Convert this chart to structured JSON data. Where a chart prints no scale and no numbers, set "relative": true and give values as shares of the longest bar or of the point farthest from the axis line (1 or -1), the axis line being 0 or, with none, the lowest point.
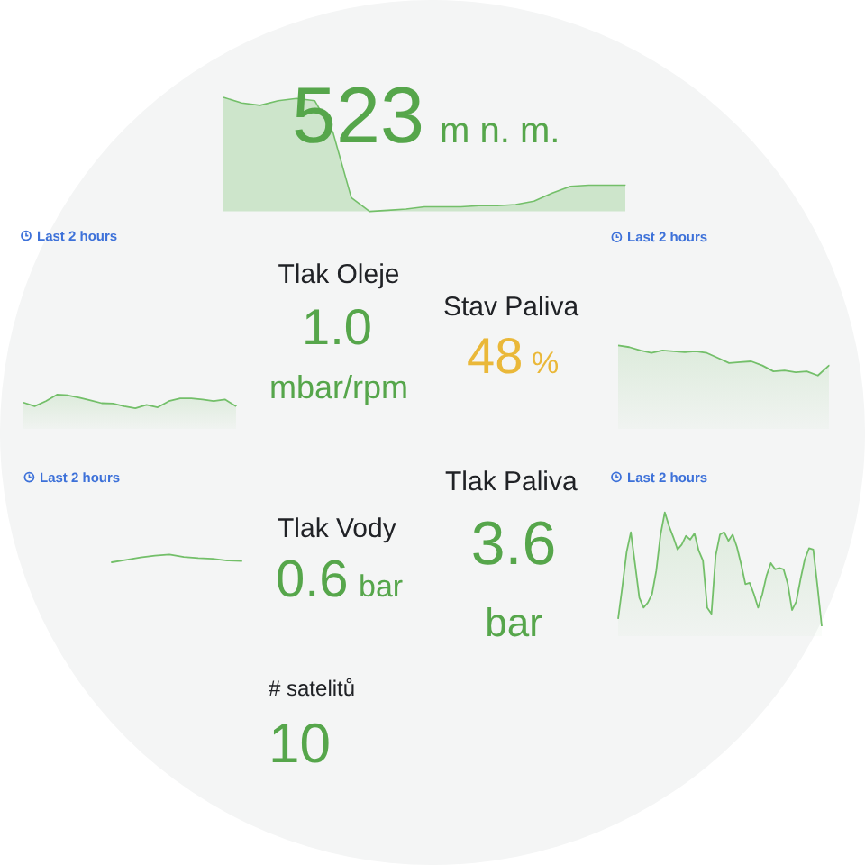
{
  "chart_data": [
    {
      "type": "area",
      "relative": true,
      "categories": [
        null,
        null,
        null,
        null,
        null,
        null,
        null,
        null,
        null,
        null,
        null,
        null,
        null,
        null,
        null,
        null,
        null,
        null,
        null,
        null,
        null,
        null,
        null
      ],
      "values": [
        1.0,
        0.95,
        0.93,
        0.97,
        0.99,
        0.97,
        0.69,
        0.12,
        0,
        0.01,
        0.02,
        0.04,
        0.04,
        0.04,
        0.05,
        0.05,
        0.06,
        0.09,
        0.16,
        0.22,
        0.23,
        0.23,
        0.23
      ],
      "color": "#73bf69",
      "annotations": [
        "523",
        "m n. m."
      ]
    },
    {
      "type": "area",
      "relative": true,
      "categories": [
        null,
        null,
        null,
        null,
        null,
        null,
        null,
        null,
        null,
        null,
        null,
        null,
        null,
        null,
        null,
        null,
        null,
        null,
        null,
        null
      ],
      "values": [
        0.77,
        0.66,
        0.81,
        1.0,
        0.98,
        0.91,
        0.83,
        0.75,
        0.74,
        0.66,
        0.6,
        0.7,
        0.63,
        0.81,
        0.89,
        0.89,
        0.86,
        0.81,
        0.86,
        0.66
      ],
      "color": "#73bf69",
      "annotations": [
        "Last 2 hours"
      ]
    },
    {
      "type": "other",
      "title": "Tlak Oleje",
      "annotations": [
        "1.0",
        "mbar/rpm"
      ]
    },
    {
      "type": "other",
      "title": "Stav Paliva",
      "annotations": [
        "48",
        "%"
      ]
    },
    {
      "type": "area",
      "relative": true,
      "categories": [
        null,
        null,
        null,
        null,
        null,
        null,
        null,
        null,
        null,
        null,
        null,
        null,
        null,
        null,
        null,
        null,
        null,
        null,
        null,
        null
      ],
      "values": [
        1.0,
        0.98,
        0.94,
        0.91,
        0.94,
        0.93,
        0.92,
        0.93,
        0.91,
        0.85,
        0.79,
        0.8,
        0.81,
        0.76,
        0.69,
        0.7,
        0.68,
        0.69,
        0.64,
        0.76
      ],
      "color": "#73bf69",
      "annotations": [
        "Last 2 hours"
      ]
    },
    {
      "type": "line",
      "relative": true,
      "categories": [
        null,
        null,
        null,
        null,
        null,
        null,
        null,
        null,
        null,
        null
      ],
      "values": [
        0,
        0.31,
        0.62,
        0.85,
        1.0,
        0.69,
        0.54,
        0.46,
        0.23,
        0.15
      ],
      "color": "#73bf69",
      "annotations": [
        "Last 2 hours"
      ]
    },
    {
      "type": "other",
      "title": "Tlak Vody",
      "annotations": [
        "0.6",
        "bar"
      ]
    },
    {
      "type": "other",
      "title": "Tlak Paliva",
      "annotations": [
        "3.6",
        "bar"
      ]
    },
    {
      "type": "area",
      "relative": true,
      "categories": [
        null,
        null,
        null,
        null,
        null,
        null,
        null,
        null,
        null,
        null,
        null,
        null,
        null,
        null,
        null,
        null,
        null,
        null,
        null,
        null,
        null,
        null,
        null,
        null,
        null,
        null,
        null,
        null,
        null,
        null,
        null,
        null,
        null,
        null,
        null,
        null,
        null,
        null,
        null,
        null,
        null,
        null,
        null,
        null,
        null,
        null,
        null,
        null,
        null
      ],
      "values": [
        0.14,
        0.4,
        0.68,
        0.84,
        0.58,
        0.31,
        0.23,
        0.27,
        0.34,
        0.53,
        0.82,
        1.0,
        0.89,
        0.8,
        0.7,
        0.74,
        0.81,
        0.78,
        0.83,
        0.69,
        0.61,
        0.23,
        0.18,
        0.65,
        0.82,
        0.84,
        0.77,
        0.82,
        0.72,
        0.58,
        0.42,
        0.43,
        0.34,
        0.23,
        0.34,
        0.49,
        0.59,
        0.54,
        0.55,
        0.54,
        0.42,
        0.21,
        0.28,
        0.46,
        0.62,
        0.71,
        0.7,
        0.4,
        0.08
      ],
      "color": "#73bf69",
      "annotations": [
        "Last 2 hours"
      ]
    },
    {
      "type": "other",
      "title": "# satelitů",
      "annotations": [
        "10"
      ]
    }
  ]
}
